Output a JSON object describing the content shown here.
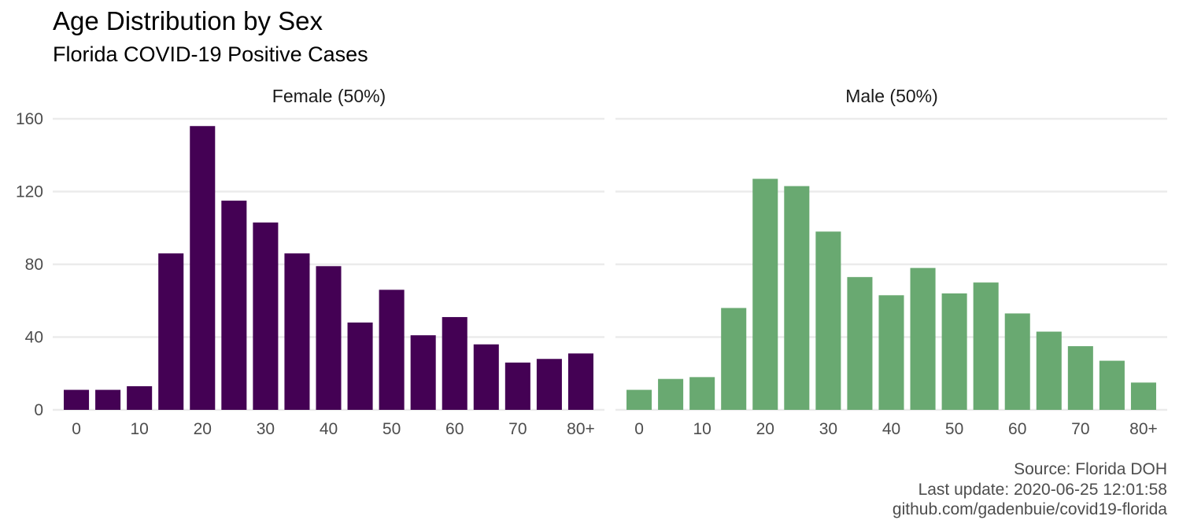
{
  "title": "Age Distribution by Sex",
  "subtitle": "Florida COVID-19 Positive Cases",
  "caption": {
    "source": "Source: Florida DOH",
    "updated": "Last update: 2020-06-25 12:01:58",
    "repo": "github.com/gadenbuie/covid19-florida"
  },
  "chart_data": {
    "type": "bar",
    "title": "Age Distribution by Sex",
    "subtitle": "Florida COVID-19 Positive Cases",
    "xlabel": "",
    "ylabel": "",
    "categories": [
      "0",
      "5",
      "10",
      "15",
      "20",
      "25",
      "30",
      "35",
      "40",
      "45",
      "50",
      "55",
      "60",
      "65",
      "70",
      "75",
      "80+"
    ],
    "x_tick_labels": [
      "0",
      "10",
      "20",
      "30",
      "40",
      "50",
      "60",
      "70",
      "80+"
    ],
    "ylim": [
      0,
      160
    ],
    "y_ticks": [
      0,
      40,
      80,
      120,
      160
    ],
    "grid": true,
    "facets": [
      {
        "name": "Female (50%)",
        "color": "#440154",
        "values": [
          11,
          11,
          13,
          86,
          156,
          115,
          103,
          86,
          79,
          48,
          66,
          41,
          51,
          36,
          26,
          28,
          31
        ]
      },
      {
        "name": "Male (50%)",
        "color": "#69A971",
        "values": [
          11,
          17,
          18,
          56,
          127,
          123,
          98,
          73,
          63,
          78,
          64,
          70,
          53,
          43,
          35,
          27,
          15
        ]
      }
    ]
  }
}
